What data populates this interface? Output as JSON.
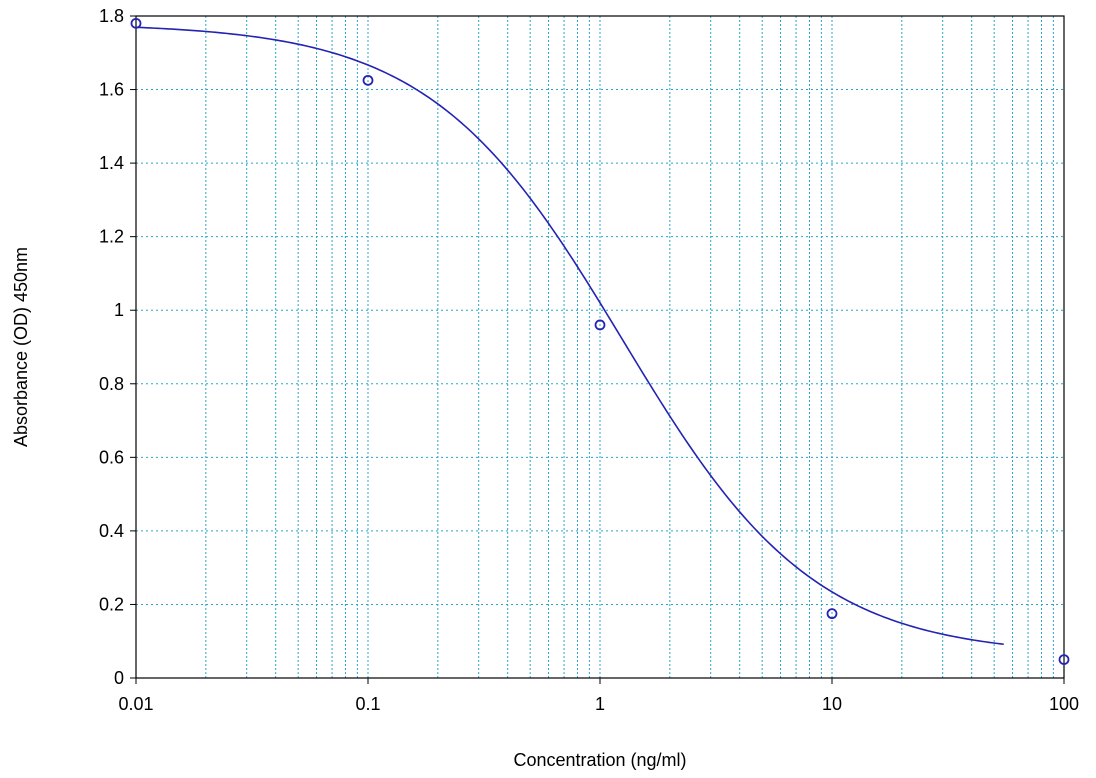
{
  "chart_data": {
    "type": "scatter",
    "title": "",
    "xlabel": "Concentration (ng/ml)",
    "ylabel": "Absorbance (OD) 450nm",
    "xscale": "log",
    "xlim": [
      0.01,
      100
    ],
    "ylim": [
      0,
      1.8
    ],
    "x_ticks": [
      0.01,
      0.1,
      1,
      10,
      100
    ],
    "x_tick_labels": [
      "0.01",
      "0.1",
      "1",
      "10",
      "100"
    ],
    "y_ticks": [
      0,
      0.2,
      0.4,
      0.6,
      0.8,
      1,
      1.2,
      1.4,
      1.6,
      1.8
    ],
    "y_tick_labels": [
      "0",
      "0.2",
      "0.4",
      "0.6",
      "0.8",
      "1",
      "1.2",
      "1.4",
      "1.6",
      "1.8"
    ],
    "grid": true,
    "points": {
      "x": [
        0.01,
        0.1,
        1,
        10,
        100
      ],
      "y": [
        1.78,
        1.625,
        0.96,
        0.175,
        0.05
      ]
    },
    "fit_curve": {
      "model": "4PL",
      "top": 1.78,
      "bottom": 0.06,
      "ec50": 1.25,
      "hill": 1.05,
      "x_range": [
        0.01,
        55
      ]
    },
    "colors": {
      "series": "#2323b4",
      "grid": "#2aa5c9",
      "axis": "#000000"
    }
  }
}
